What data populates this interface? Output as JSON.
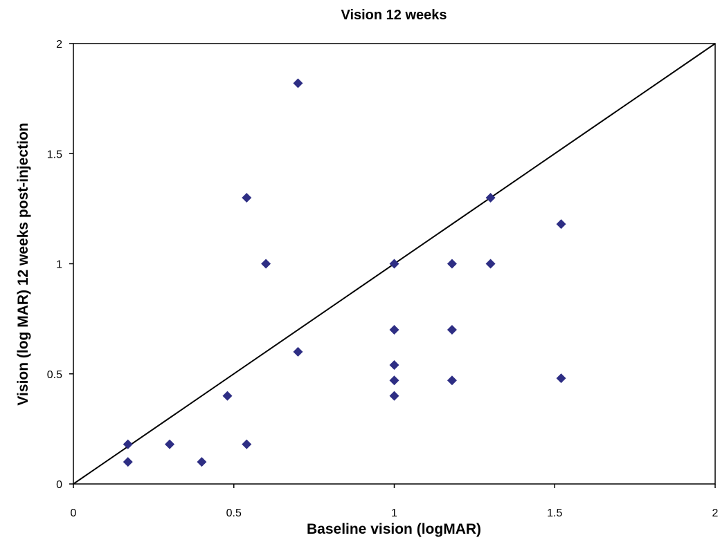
{
  "chart_data": {
    "type": "scatter",
    "title": "Vision 12 weeks",
    "xlabel": "Baseline vision (logMAR)",
    "ylabel": "Vision (log MAR) 12 weeks post-injection",
    "xlim": [
      0,
      2
    ],
    "ylim": [
      0,
      2
    ],
    "x_ticks": [
      "0",
      "0.5",
      "1",
      "1.5",
      "2"
    ],
    "y_ticks": [
      "0",
      "0.5",
      "1",
      "1.5",
      "2"
    ],
    "grid": false,
    "marker": "diamond",
    "marker_color": "#2E2E84",
    "reference_line": {
      "from": [
        0,
        0
      ],
      "to": [
        2,
        2
      ],
      "color": "#000000"
    },
    "points": [
      {
        "x": 0.17,
        "y": 0.18
      },
      {
        "x": 0.17,
        "y": 0.1
      },
      {
        "x": 0.3,
        "y": 0.18
      },
      {
        "x": 0.4,
        "y": 0.1
      },
      {
        "x": 0.48,
        "y": 0.4
      },
      {
        "x": 0.54,
        "y": 0.18
      },
      {
        "x": 0.54,
        "y": 1.3
      },
      {
        "x": 0.6,
        "y": 1.0
      },
      {
        "x": 0.7,
        "y": 1.82
      },
      {
        "x": 0.7,
        "y": 0.6
      },
      {
        "x": 1.0,
        "y": 1.0
      },
      {
        "x": 1.0,
        "y": 0.7
      },
      {
        "x": 1.0,
        "y": 0.54
      },
      {
        "x": 1.0,
        "y": 0.47
      },
      {
        "x": 1.0,
        "y": 0.4
      },
      {
        "x": 1.18,
        "y": 1.0
      },
      {
        "x": 1.18,
        "y": 0.7
      },
      {
        "x": 1.18,
        "y": 0.47
      },
      {
        "x": 1.3,
        "y": 1.3
      },
      {
        "x": 1.3,
        "y": 1.0
      },
      {
        "x": 1.52,
        "y": 1.18
      },
      {
        "x": 1.52,
        "y": 0.48
      }
    ]
  }
}
